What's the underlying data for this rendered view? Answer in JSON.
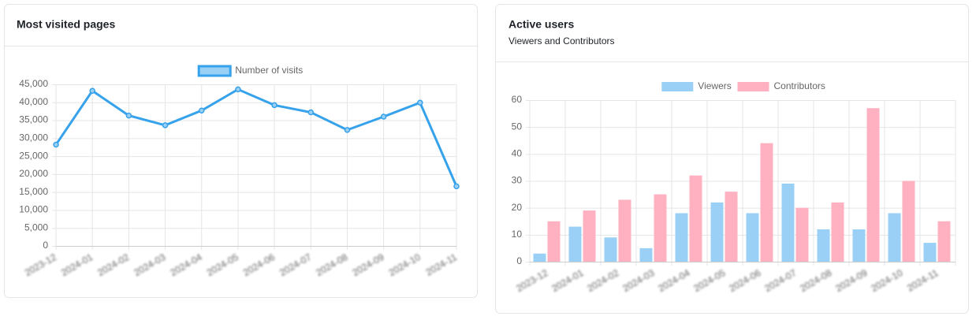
{
  "chart_data": [
    {
      "type": "line",
      "title": "Most visited pages",
      "categories": [
        "2023-12",
        "2024-01",
        "2024-02",
        "2024-03",
        "2024-04",
        "2024-05",
        "2024-06",
        "2024-07",
        "2024-08",
        "2024-09",
        "2024-10",
        "2024-11"
      ],
      "series": [
        {
          "name": "Number of visits",
          "color": "#36a2eb",
          "values": [
            28200,
            43200,
            36300,
            33600,
            37700,
            43600,
            39200,
            37200,
            32300,
            36000,
            39900,
            16600
          ]
        }
      ],
      "ylim": [
        0,
        45000
      ],
      "yticks": [
        0,
        {
          "value": 5000,
          "label": "5,000"
        },
        {
          "value": 10000,
          "label": "10,000"
        },
        {
          "value": 15000,
          "label": "15,000"
        },
        {
          "value": 20000,
          "label": "20,000"
        },
        {
          "value": 25000,
          "label": "25,000"
        },
        {
          "value": 30000,
          "label": "30,000"
        },
        {
          "value": 35000,
          "label": "35,000"
        },
        {
          "value": 40000,
          "label": "40,000"
        },
        {
          "value": 45000,
          "label": "45,000"
        }
      ],
      "grid": true
    },
    {
      "type": "bar",
      "title": "Active users",
      "subtitle": "Viewers and Contributors",
      "categories": [
        "2023-12",
        "2024-01",
        "2024-02",
        "2024-03",
        "2024-04",
        "2024-05",
        "2024-06",
        "2024-07",
        "2024-08",
        "2024-09",
        "2024-10",
        "2024-11"
      ],
      "series": [
        {
          "name": "Viewers",
          "color": "#9ad0f5",
          "values": [
            3,
            13,
            9,
            5,
            18,
            22,
            18,
            29,
            12,
            12,
            18,
            7
          ]
        },
        {
          "name": "Contributors",
          "color": "#ffb1c1",
          "values": [
            15,
            19,
            23,
            25,
            32,
            26,
            44,
            20,
            22,
            57,
            30,
            15
          ]
        }
      ],
      "ylim": [
        0,
        60
      ],
      "yticks": [
        0,
        10,
        20,
        30,
        40,
        50,
        60
      ],
      "grid": true
    }
  ]
}
